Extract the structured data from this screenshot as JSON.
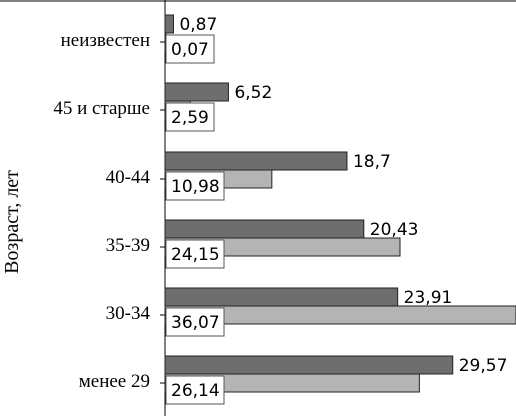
{
  "chart_data": {
    "type": "bar",
    "orientation": "horizontal",
    "ylabel": "Возраст, лет",
    "xlabel": "",
    "categories": [
      "неизвестен",
      "45 и старше",
      "40-44",
      "35-39",
      "30-34",
      "менее 29"
    ],
    "series": [
      {
        "values": [
          0.87,
          6.52,
          18.7,
          20.43,
          23.91,
          29.57
        ],
        "labels": [
          "0,87",
          "6,52",
          "18,7",
          "20,43",
          "23,91",
          "29,57"
        ],
        "color": "#6e6e6e"
      },
      {
        "values": [
          0.07,
          2.59,
          10.98,
          24.15,
          36.07,
          26.14
        ],
        "labels": [
          "0,07",
          "2,59",
          "10,98",
          "24,15",
          "36,07",
          "26,14"
        ],
        "color": "#b4b4b4"
      }
    ],
    "xlim": [
      0,
      36.07
    ],
    "grid": false,
    "legend": "none"
  }
}
